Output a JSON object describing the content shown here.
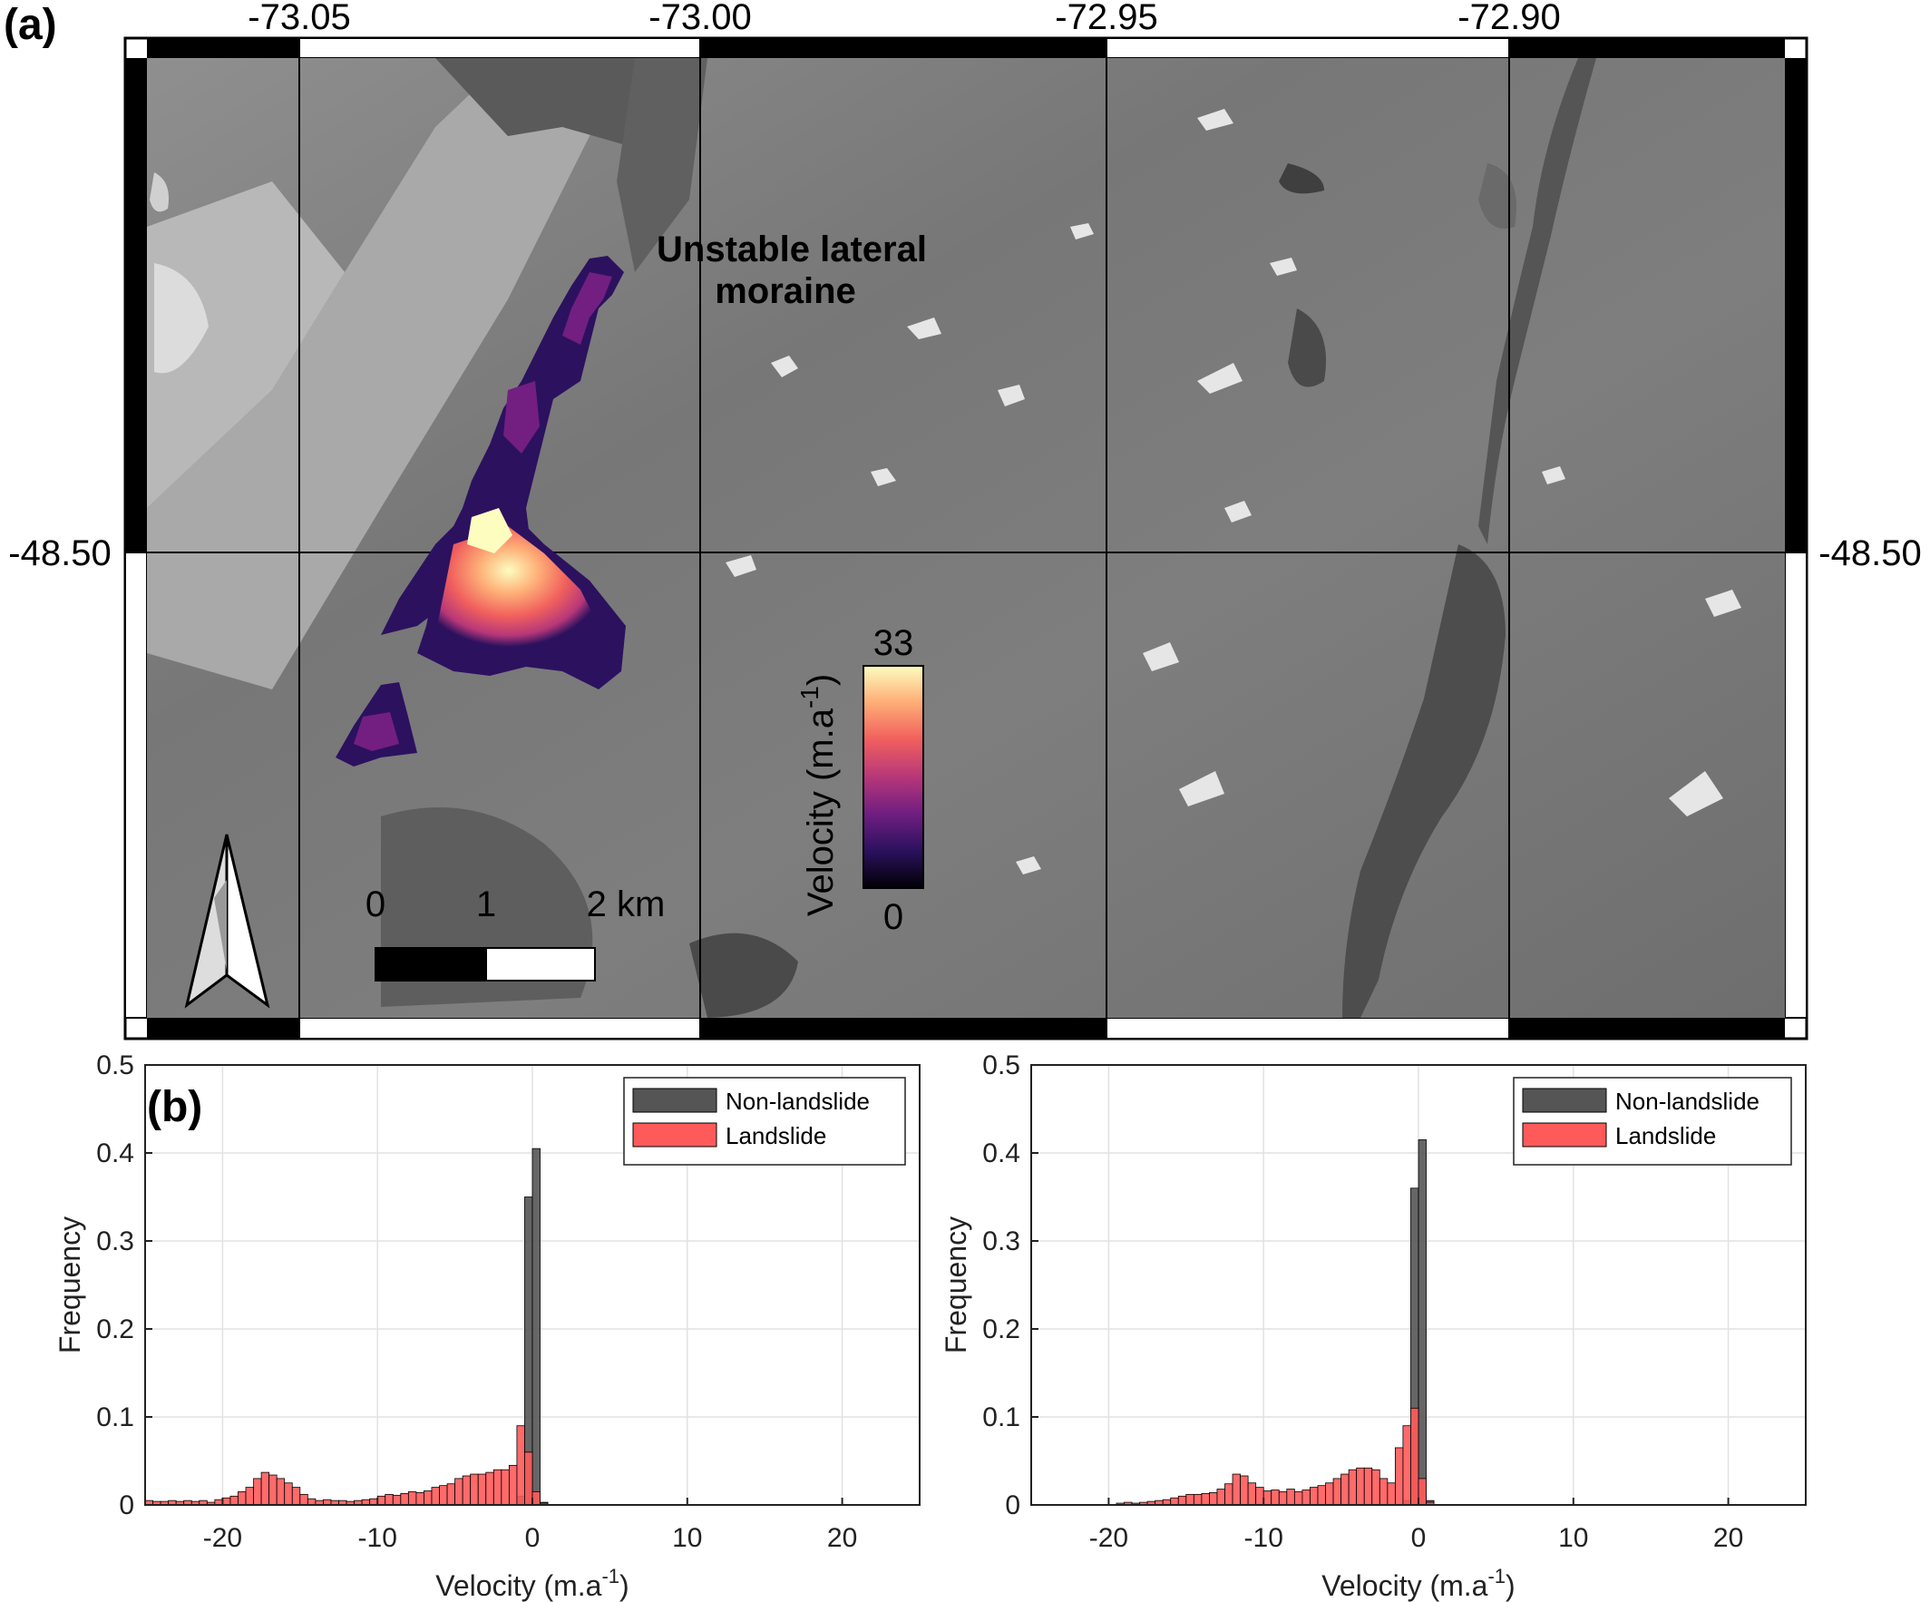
{
  "panel_a": {
    "label": "(a)",
    "lon_ticks": [
      "-73.05",
      "-73.00",
      "-72.95",
      "-72.90"
    ],
    "lat_tick_left": "-48.50",
    "lat_tick_right": "-48.50",
    "annotation_line1": "Unstable lateral",
    "annotation_line2": "moraine",
    "colorbar": {
      "label_main": "Velocity (m.a",
      "label_sup": "-1",
      "label_close": ")",
      "max": "33",
      "min": "0",
      "colormap": [
        "#000004",
        "#2c115f",
        "#721f81",
        "#b73779",
        "#f1605d",
        "#feb078",
        "#fcfdbf"
      ]
    },
    "scalebar": {
      "tick0": "0",
      "tick1": "1",
      "tick2": "2 km"
    },
    "north_arrow": "north-arrow-icon"
  },
  "panel_b": {
    "label": "(b)"
  },
  "chart_data": [
    {
      "type": "histogram",
      "xlabel_main": "Velocity (m.a",
      "xlabel_sup": "-1",
      "xlabel_close": ")",
      "ylabel": "Frequency",
      "xlim": [
        -25,
        25
      ],
      "ylim": [
        0,
        0.5
      ],
      "xticks": [
        "-20",
        "-10",
        "0",
        "10",
        "20"
      ],
      "yticks": [
        "0",
        "0.1",
        "0.2",
        "0.3",
        "0.4",
        "0.5"
      ],
      "grid": true,
      "legend_position": "top-right",
      "bin_width": 0.5,
      "series": [
        {
          "name": "Non-landslide",
          "color": "#555555",
          "bins": [
            [
              -1.5,
              0.0
            ],
            [
              -1.0,
              0.01
            ],
            [
              -0.5,
              0.35
            ],
            [
              0.0,
              0.405
            ],
            [
              0.5,
              0.003
            ]
          ]
        },
        {
          "name": "Landslide",
          "color": "#ff5a5a",
          "bins": [
            [
              -25.0,
              0.005
            ],
            [
              -24.5,
              0.004
            ],
            [
              -24.0,
              0.004
            ],
            [
              -23.5,
              0.005
            ],
            [
              -23.0,
              0.004
            ],
            [
              -22.5,
              0.005
            ],
            [
              -22.0,
              0.004
            ],
            [
              -21.5,
              0.005
            ],
            [
              -21.0,
              0.003
            ],
            [
              -20.5,
              0.006
            ],
            [
              -20.0,
              0.008
            ],
            [
              -19.5,
              0.01
            ],
            [
              -19.0,
              0.015
            ],
            [
              -18.5,
              0.02
            ],
            [
              -18.0,
              0.03
            ],
            [
              -17.5,
              0.037
            ],
            [
              -17.0,
              0.034
            ],
            [
              -16.5,
              0.03
            ],
            [
              -16.0,
              0.025
            ],
            [
              -15.5,
              0.02
            ],
            [
              -15.0,
              0.012
            ],
            [
              -14.5,
              0.007
            ],
            [
              -14.0,
              0.005
            ],
            [
              -13.5,
              0.006
            ],
            [
              -13.0,
              0.005
            ],
            [
              -12.5,
              0.005
            ],
            [
              -12.0,
              0.004
            ],
            [
              -11.5,
              0.005
            ],
            [
              -11.0,
              0.006
            ],
            [
              -10.5,
              0.007
            ],
            [
              -10.0,
              0.01
            ],
            [
              -9.5,
              0.012
            ],
            [
              -9.0,
              0.011
            ],
            [
              -8.5,
              0.013
            ],
            [
              -8.0,
              0.015
            ],
            [
              -7.5,
              0.014
            ],
            [
              -7.0,
              0.016
            ],
            [
              -6.5,
              0.02
            ],
            [
              -6.0,
              0.022
            ],
            [
              -5.5,
              0.024
            ],
            [
              -5.0,
              0.03
            ],
            [
              -4.5,
              0.033
            ],
            [
              -4.0,
              0.035
            ],
            [
              -3.5,
              0.035
            ],
            [
              -3.0,
              0.037
            ],
            [
              -2.5,
              0.04
            ],
            [
              -2.0,
              0.04
            ],
            [
              -1.5,
              0.045
            ],
            [
              -1.0,
              0.09
            ],
            [
              -0.5,
              0.06
            ],
            [
              0.0,
              0.015
            ],
            [
              0.5,
              0.002
            ]
          ]
        }
      ]
    },
    {
      "type": "histogram",
      "xlabel_main": "Velocity (m.a",
      "xlabel_sup": "-1",
      "xlabel_close": ")",
      "ylabel": "Frequency",
      "xlim": [
        -25,
        25
      ],
      "ylim": [
        0,
        0.5
      ],
      "xticks": [
        "-20",
        "-10",
        "0",
        "10",
        "20"
      ],
      "yticks": [
        "0",
        "0.1",
        "0.2",
        "0.3",
        "0.4",
        "0.5"
      ],
      "grid": true,
      "legend_position": "top-right",
      "bin_width": 0.5,
      "series": [
        {
          "name": "Non-landslide",
          "color": "#555555",
          "bins": [
            [
              -1.5,
              0.0
            ],
            [
              -1.0,
              0.005
            ],
            [
              -0.5,
              0.36
            ],
            [
              0.0,
              0.415
            ],
            [
              0.5,
              0.005
            ]
          ]
        },
        {
          "name": "Landslide",
          "color": "#ff5a5a",
          "bins": [
            [
              -19.5,
              0.002
            ],
            [
              -19.0,
              0.003
            ],
            [
              -18.5,
              0.002
            ],
            [
              -18.0,
              0.003
            ],
            [
              -17.5,
              0.004
            ],
            [
              -17.0,
              0.005
            ],
            [
              -16.5,
              0.006
            ],
            [
              -16.0,
              0.008
            ],
            [
              -15.5,
              0.01
            ],
            [
              -15.0,
              0.012
            ],
            [
              -14.5,
              0.012
            ],
            [
              -14.0,
              0.013
            ],
            [
              -13.5,
              0.014
            ],
            [
              -13.0,
              0.018
            ],
            [
              -12.5,
              0.024
            ],
            [
              -12.0,
              0.035
            ],
            [
              -11.5,
              0.033
            ],
            [
              -11.0,
              0.025
            ],
            [
              -10.5,
              0.02
            ],
            [
              -10.0,
              0.016
            ],
            [
              -9.5,
              0.017
            ],
            [
              -9.0,
              0.015
            ],
            [
              -8.5,
              0.018
            ],
            [
              -8.0,
              0.015
            ],
            [
              -7.5,
              0.017
            ],
            [
              -7.0,
              0.02
            ],
            [
              -6.5,
              0.022
            ],
            [
              -6.0,
              0.025
            ],
            [
              -5.5,
              0.03
            ],
            [
              -5.0,
              0.035
            ],
            [
              -4.5,
              0.04
            ],
            [
              -4.0,
              0.042
            ],
            [
              -3.5,
              0.042
            ],
            [
              -3.0,
              0.04
            ],
            [
              -2.5,
              0.03
            ],
            [
              -2.0,
              0.025
            ],
            [
              -1.5,
              0.065
            ],
            [
              -1.0,
              0.09
            ],
            [
              -0.5,
              0.11
            ],
            [
              0.0,
              0.03
            ],
            [
              0.5,
              0.003
            ]
          ]
        }
      ]
    }
  ]
}
